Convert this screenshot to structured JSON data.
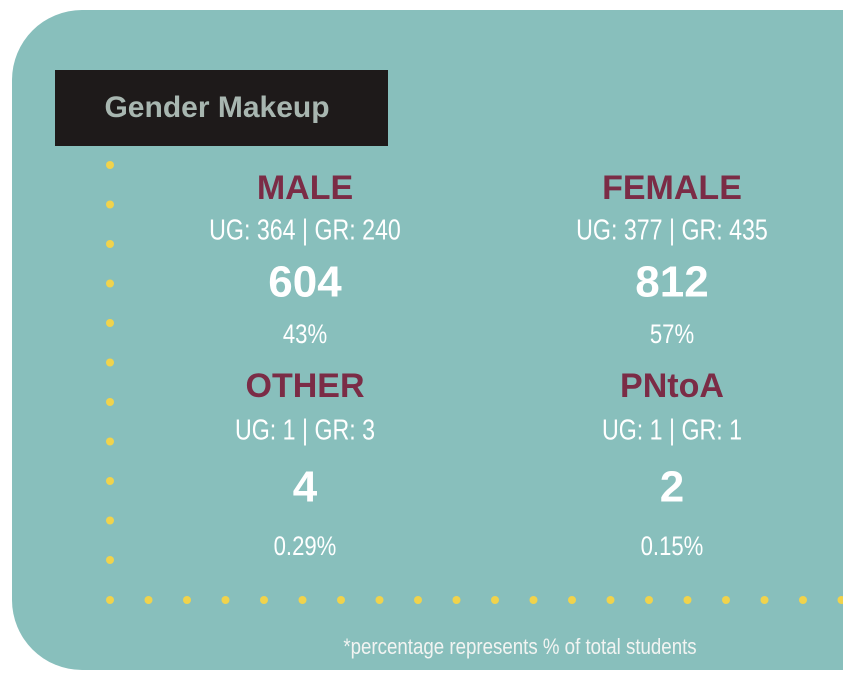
{
  "header": {
    "title": "Gender Makeup"
  },
  "groups": [
    {
      "label": "MALE",
      "breakdown": "UG: 364 | GR: 240",
      "total": "604",
      "percent": "43%"
    },
    {
      "label": "FEMALE",
      "breakdown": "UG: 377 | GR: 435",
      "total": "812",
      "percent": "57%"
    },
    {
      "label": "OTHER",
      "breakdown": "UG: 1 | GR: 3",
      "total": "4",
      "percent": "0.29%"
    },
    {
      "label": "PNtoA",
      "breakdown": "UG: 1 | GR: 1",
      "total": "2",
      "percent": "0.15%"
    }
  ],
  "footnote": "*percentage represents % of total  students"
}
